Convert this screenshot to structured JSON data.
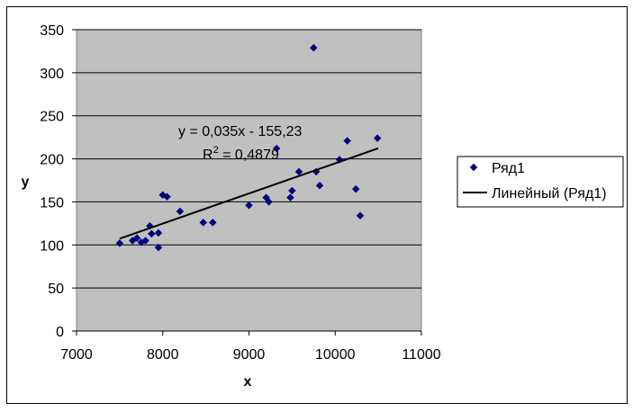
{
  "chart_data": {
    "type": "scatter",
    "title": "",
    "xlabel": "x",
    "ylabel": "y",
    "xlim": [
      7000,
      11000
    ],
    "ylim": [
      0,
      350
    ],
    "xticks": [
      "7000",
      "8000",
      "9000",
      "10000",
      "11000"
    ],
    "yticks": [
      "0",
      "50",
      "100",
      "150",
      "200",
      "250",
      "300",
      "350"
    ],
    "grid": "horizontal",
    "legend_position": "right",
    "colors": {
      "plot_bg": "#C0C0C0",
      "marker": "#000080",
      "trend": "#000000"
    },
    "series": [
      {
        "name": "Ряд1",
        "x": [
          7500,
          7650,
          7700,
          7750,
          7800,
          7850,
          7870,
          7950,
          7950,
          8000,
          8050,
          8200,
          8470,
          8580,
          9000,
          9200,
          9230,
          9320,
          9480,
          9500,
          9580,
          9780,
          9820,
          10050,
          10140,
          10240,
          10290,
          10490,
          9750
        ],
        "y": [
          102,
          105,
          108,
          103,
          105,
          122,
          113,
          97,
          114,
          158,
          156,
          139,
          126,
          126,
          146,
          155,
          150,
          212,
          155,
          163,
          185,
          185,
          169,
          199,
          221,
          165,
          134,
          224,
          329
        ]
      }
    ],
    "trendline": {
      "name": "Линейный (Ряд1)",
      "slope": 0.035,
      "intercept": -155.23,
      "x_range": [
        7500,
        10500
      ],
      "equation": "y = 0,035x - 155,23",
      "r2_prefix": "R",
      "r2_sup": "2",
      "r2_value": " = 0,4879"
    }
  }
}
